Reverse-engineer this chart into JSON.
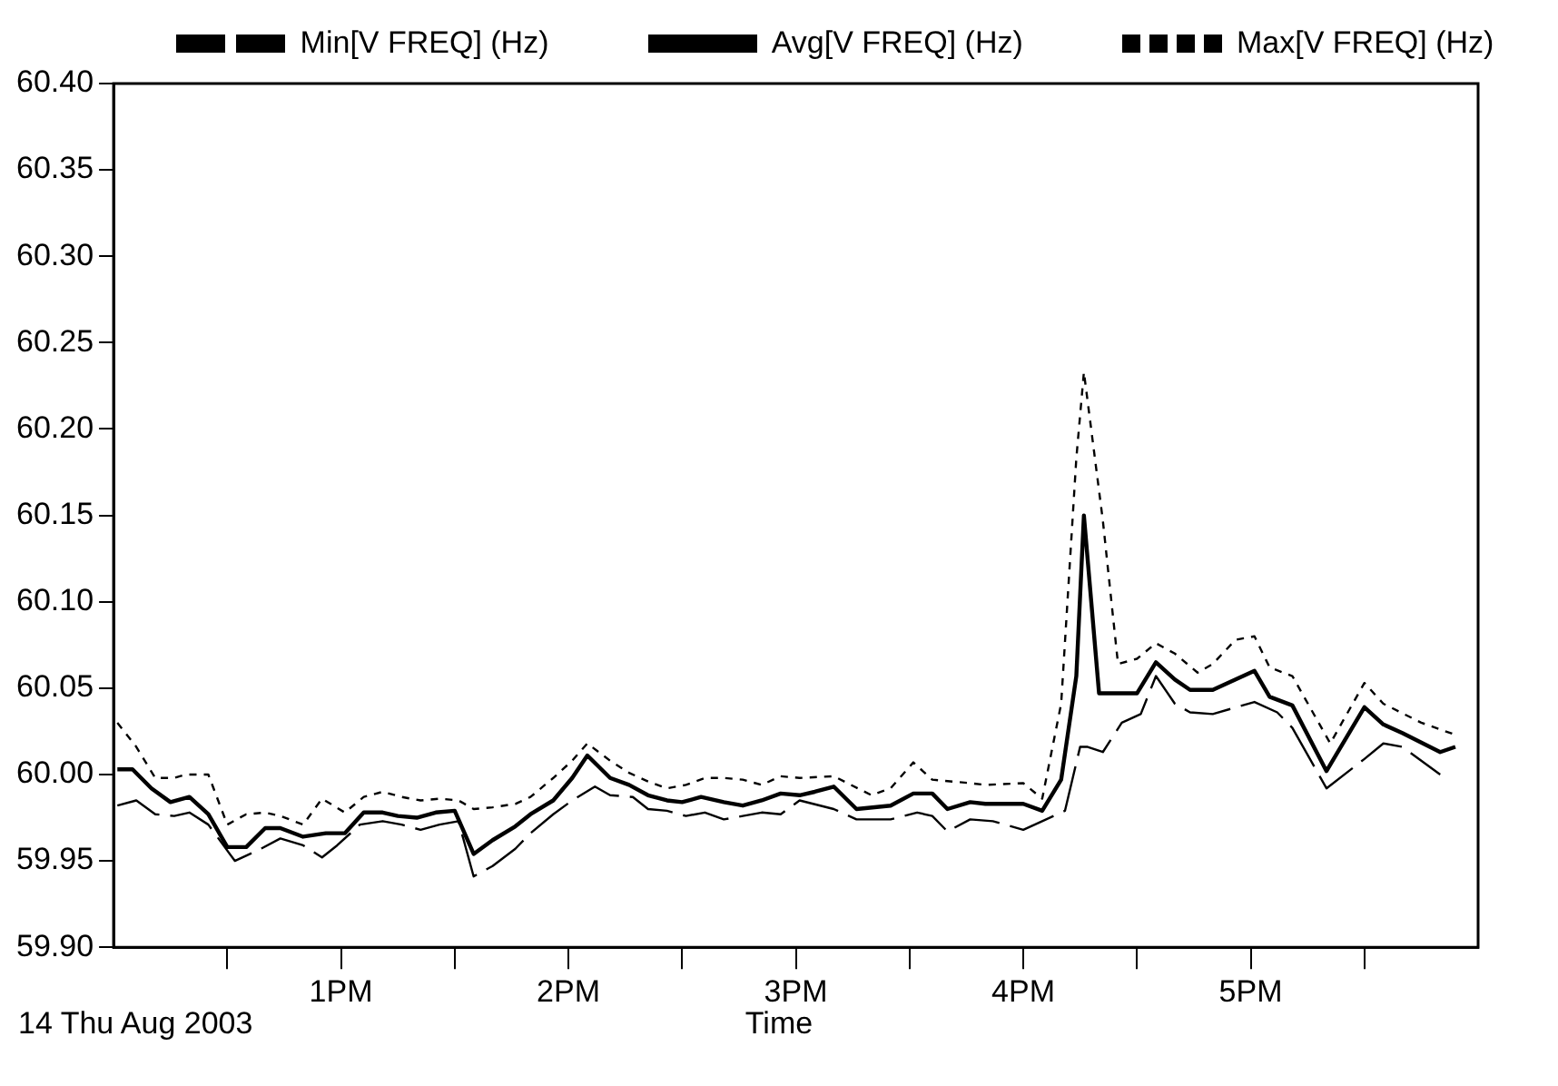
{
  "chart_data": {
    "type": "line",
    "xlabel": "Time",
    "annotations": [
      "14 Thu Aug 2003"
    ],
    "xlim": [
      "2003-08-14T12:00",
      "2003-08-14T18:00"
    ],
    "xticks": [
      {
        "value": "2003-08-14T12:30",
        "label": null
      },
      {
        "value": "2003-08-14T13:00",
        "label": "1PM"
      },
      {
        "value": "2003-08-14T13:30",
        "label": null
      },
      {
        "value": "2003-08-14T14:00",
        "label": "2PM"
      },
      {
        "value": "2003-08-14T14:30",
        "label": null
      },
      {
        "value": "2003-08-14T15:00",
        "label": "3PM"
      },
      {
        "value": "2003-08-14T15:30",
        "label": null
      },
      {
        "value": "2003-08-14T16:00",
        "label": "4PM"
      },
      {
        "value": "2003-08-14T16:30",
        "label": null
      },
      {
        "value": "2003-08-14T17:00",
        "label": "5PM"
      },
      {
        "value": "2003-08-14T17:30",
        "label": null
      }
    ],
    "ylim": [
      59.9,
      60.4
    ],
    "yticks": [
      {
        "value": 59.9,
        "label": "59.90"
      },
      {
        "value": 59.95,
        "label": "59.95"
      },
      {
        "value": 60,
        "label": "60.00"
      },
      {
        "value": 60.05,
        "label": "60.05"
      },
      {
        "value": 60.1,
        "label": "60.10"
      },
      {
        "value": 60.15,
        "label": "60.15"
      },
      {
        "value": 60.2,
        "label": "60.20"
      },
      {
        "value": 60.25,
        "label": "60.25"
      },
      {
        "value": 60.3,
        "label": "60.30"
      },
      {
        "value": 60.35,
        "label": "60.35"
      },
      {
        "value": 60.4,
        "label": "60.40"
      }
    ],
    "grid": false,
    "legend": "top",
    "marker": "none",
    "series": [
      {
        "name": "Min[V FREQ] (Hz)",
        "color": "#000000",
        "line_style": "dashed",
        "x": [
          "2003-08-14T12:01",
          "2003-08-14T12:06",
          "2003-08-14T12:11",
          "2003-08-14T12:16",
          "2003-08-14T12:20",
          "2003-08-14T12:25",
          "2003-08-14T12:32",
          "2003-08-14T12:38",
          "2003-08-14T12:44",
          "2003-08-14T12:50",
          "2003-08-14T12:55",
          "2003-08-14T12:59",
          "2003-08-14T13:05",
          "2003-08-14T13:11",
          "2003-08-14T13:16",
          "2003-08-14T13:21",
          "2003-08-14T13:26",
          "2003-08-14T13:31",
          "2003-08-14T13:35",
          "2003-08-14T13:40",
          "2003-08-14T13:46",
          "2003-08-14T13:50",
          "2003-08-14T13:56",
          "2003-08-14T14:01",
          "2003-08-14T14:07",
          "2003-08-14T14:11",
          "2003-08-14T14:17",
          "2003-08-14T14:21",
          "2003-08-14T14:26",
          "2003-08-14T14:31",
          "2003-08-14T14:36",
          "2003-08-14T14:41",
          "2003-08-14T14:46",
          "2003-08-14T14:51",
          "2003-08-14T14:56",
          "2003-08-14T15:01",
          "2003-08-14T15:10",
          "2003-08-14T15:16",
          "2003-08-14T15:25",
          "2003-08-14T15:32",
          "2003-08-14T15:36",
          "2003-08-14T15:40",
          "2003-08-14T15:46",
          "2003-08-14T15:52",
          "2003-08-14T16:00",
          "2003-08-14T16:05",
          "2003-08-14T16:11",
          "2003-08-14T16:15",
          "2003-08-14T16:17",
          "2003-08-14T16:21",
          "2003-08-14T16:26",
          "2003-08-14T16:31",
          "2003-08-14T16:35",
          "2003-08-14T16:40",
          "2003-08-14T16:44",
          "2003-08-14T16:50",
          "2003-08-14T17:01",
          "2003-08-14T17:07",
          "2003-08-14T17:11",
          "2003-08-14T17:20",
          "2003-08-14T17:30",
          "2003-08-14T17:35",
          "2003-08-14T17:40",
          "2003-08-14T17:50"
        ],
        "values": [
          59.982,
          59.985,
          59.977,
          59.976,
          59.978,
          59.971,
          59.95,
          59.956,
          59.963,
          59.959,
          59.952,
          59.959,
          59.971,
          59.973,
          59.971,
          59.968,
          59.971,
          59.973,
          59.941,
          59.947,
          59.957,
          59.966,
          59.977,
          59.985,
          59.993,
          59.988,
          59.987,
          59.98,
          59.979,
          59.976,
          59.978,
          59.974,
          59.976,
          59.978,
          59.977,
          59.985,
          59.98,
          59.974,
          59.974,
          59.978,
          59.976,
          59.967,
          59.974,
          59.973,
          59.968,
          59.973,
          59.979,
          60.016,
          60.016,
          60.013,
          60.03,
          60.035,
          60.057,
          60.041,
          60.036,
          60.035,
          60.042,
          60.036,
          60.027,
          59.992,
          60.009,
          60.018,
          60.016,
          60.0
        ]
      },
      {
        "name": "Avg[V FREQ] (Hz)",
        "color": "#000000",
        "line_style": "solid",
        "x": [
          "2003-08-14T12:01",
          "2003-08-14T12:05",
          "2003-08-14T12:10",
          "2003-08-14T12:15",
          "2003-08-14T12:20",
          "2003-08-14T12:25",
          "2003-08-14T12:30",
          "2003-08-14T12:35",
          "2003-08-14T12:40",
          "2003-08-14T12:44",
          "2003-08-14T12:50",
          "2003-08-14T12:56",
          "2003-08-14T13:01",
          "2003-08-14T13:06",
          "2003-08-14T13:11",
          "2003-08-14T13:15",
          "2003-08-14T13:20",
          "2003-08-14T13:25",
          "2003-08-14T13:30",
          "2003-08-14T13:35",
          "2003-08-14T13:40",
          "2003-08-14T13:46",
          "2003-08-14T13:50",
          "2003-08-14T13:56",
          "2003-08-14T14:01",
          "2003-08-14T14:05",
          "2003-08-14T14:11",
          "2003-08-14T14:16",
          "2003-08-14T14:21",
          "2003-08-14T14:26",
          "2003-08-14T14:30",
          "2003-08-14T14:35",
          "2003-08-14T14:41",
          "2003-08-14T14:46",
          "2003-08-14T14:51",
          "2003-08-14T14:56",
          "2003-08-14T15:01",
          "2003-08-14T15:05",
          "2003-08-14T15:10",
          "2003-08-14T15:16",
          "2003-08-14T15:25",
          "2003-08-14T15:31",
          "2003-08-14T15:36",
          "2003-08-14T15:40",
          "2003-08-14T15:46",
          "2003-08-14T15:50",
          "2003-08-14T16:00",
          "2003-08-14T16:05",
          "2003-08-14T16:10",
          "2003-08-14T16:14",
          "2003-08-14T16:16",
          "2003-08-14T16:20",
          "2003-08-14T16:30",
          "2003-08-14T16:35",
          "2003-08-14T16:40",
          "2003-08-14T16:44",
          "2003-08-14T16:50",
          "2003-08-14T17:01",
          "2003-08-14T17:05",
          "2003-08-14T17:11",
          "2003-08-14T17:20",
          "2003-08-14T17:30",
          "2003-08-14T17:35",
          "2003-08-14T17:40",
          "2003-08-14T17:50",
          "2003-08-14T17:54"
        ],
        "values": [
          60.003,
          60.003,
          59.992,
          59.984,
          59.987,
          59.977,
          59.958,
          59.958,
          59.969,
          59.969,
          59.964,
          59.966,
          59.966,
          59.978,
          59.978,
          59.976,
          59.975,
          59.978,
          59.979,
          59.954,
          59.962,
          59.97,
          59.977,
          59.985,
          59.998,
          60.011,
          59.998,
          59.994,
          59.988,
          59.985,
          59.984,
          59.987,
          59.984,
          59.982,
          59.985,
          59.989,
          59.988,
          59.99,
          59.993,
          59.98,
          59.982,
          59.989,
          59.989,
          59.98,
          59.984,
          59.983,
          59.983,
          59.979,
          59.997,
          60.057,
          60.15,
          60.047,
          60.047,
          60.065,
          60.055,
          60.049,
          60.049,
          60.06,
          60.045,
          60.04,
          60.002,
          60.039,
          60.029,
          60.024,
          60.013,
          60.016
        ]
      },
      {
        "name": "Max[V FREQ] (Hz)",
        "color": "#000000",
        "line_style": "dotted",
        "x": [
          "2003-08-14T12:01",
          "2003-08-14T12:06",
          "2003-08-14T12:11",
          "2003-08-14T12:16",
          "2003-08-14T12:19",
          "2003-08-14T12:25",
          "2003-08-14T12:30",
          "2003-08-14T12:35",
          "2003-08-14T12:40",
          "2003-08-14T12:44",
          "2003-08-14T12:50",
          "2003-08-14T12:55",
          "2003-08-14T13:01",
          "2003-08-14T13:06",
          "2003-08-14T13:11",
          "2003-08-14T13:16",
          "2003-08-14T13:21",
          "2003-08-14T13:26",
          "2003-08-14T13:31",
          "2003-08-14T13:35",
          "2003-08-14T13:40",
          "2003-08-14T13:46",
          "2003-08-14T13:50",
          "2003-08-14T13:56",
          "2003-08-14T14:01",
          "2003-08-14T14:05",
          "2003-08-14T14:11",
          "2003-08-14T14:16",
          "2003-08-14T14:21",
          "2003-08-14T14:26",
          "2003-08-14T14:31",
          "2003-08-14T14:36",
          "2003-08-14T14:41",
          "2003-08-14T14:46",
          "2003-08-14T14:51",
          "2003-08-14T14:56",
          "2003-08-14T15:01",
          "2003-08-14T15:10",
          "2003-08-14T15:20",
          "2003-08-14T15:25",
          "2003-08-14T15:31",
          "2003-08-14T15:36",
          "2003-08-14T15:46",
          "2003-08-14T15:50",
          "2003-08-14T16:00",
          "2003-08-14T16:05",
          "2003-08-14T16:10",
          "2003-08-14T16:14",
          "2003-08-14T16:16",
          "2003-08-14T16:21",
          "2003-08-14T16:25",
          "2003-08-14T16:30",
          "2003-08-14T16:35",
          "2003-08-14T16:40",
          "2003-08-14T16:46",
          "2003-08-14T16:50",
          "2003-08-14T16:56",
          "2003-08-14T17:01",
          "2003-08-14T17:05",
          "2003-08-14T17:11",
          "2003-08-14T17:21",
          "2003-08-14T17:30",
          "2003-08-14T17:35",
          "2003-08-14T17:45",
          "2003-08-14T17:54"
        ],
        "values": [
          60.03,
          60.016,
          59.998,
          59.998,
          60.0,
          60.0,
          59.971,
          59.977,
          59.978,
          59.976,
          59.971,
          59.986,
          59.978,
          59.987,
          59.99,
          59.987,
          59.985,
          59.986,
          59.985,
          59.98,
          59.981,
          59.983,
          59.987,
          59.998,
          60.008,
          60.018,
          60.008,
          60.001,
          59.996,
          59.992,
          59.994,
          59.998,
          59.998,
          59.997,
          59.994,
          59.999,
          59.998,
          59.999,
          59.988,
          59.992,
          60.007,
          59.997,
          59.995,
          59.994,
          59.995,
          59.986,
          60.041,
          60.183,
          60.233,
          60.147,
          60.064,
          60.067,
          60.076,
          60.07,
          60.059,
          60.064,
          60.078,
          60.08,
          60.062,
          60.057,
          60.018,
          60.053,
          60.041,
          60.03,
          60.023
        ]
      }
    ]
  }
}
